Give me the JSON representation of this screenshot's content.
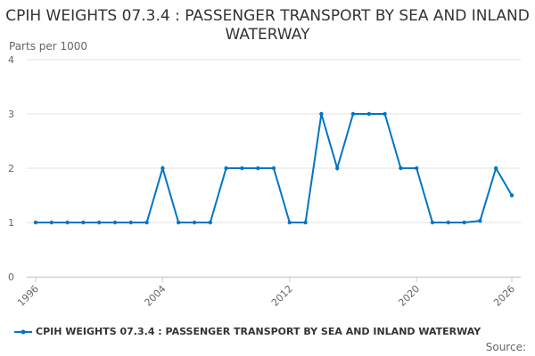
{
  "chart_data": {
    "type": "line",
    "title": "CPIH WEIGHTS 07.3.4 : PASSENGER TRANSPORT BY SEA AND INLAND WATERWAY",
    "ylabel": "Parts per 1000",
    "xlabel": "",
    "ylim": [
      0,
      4
    ],
    "xlim": [
      1996,
      2026
    ],
    "yticks": [
      0,
      1,
      2,
      3,
      4
    ],
    "xticks": [
      1996,
      2004,
      2012,
      2020,
      2026
    ],
    "grid": true,
    "legend_placement": "bottom",
    "color": "#0075c4",
    "series": [
      {
        "name": "CPIH WEIGHTS 07.3.4 : PASSENGER TRANSPORT BY SEA AND INLAND WATERWAY",
        "x": [
          1996,
          1997,
          1998,
          1999,
          2000,
          2001,
          2002,
          2003,
          2004,
          2005,
          2006,
          2007,
          2008,
          2009,
          2010,
          2011,
          2012,
          2013,
          2014,
          2015,
          2016,
          2017,
          2018,
          2019,
          2020,
          2021,
          2022,
          2023,
          2024,
          2025,
          2026
        ],
        "values": [
          1,
          1,
          1,
          1,
          1,
          1,
          1,
          1,
          2,
          1,
          1,
          1,
          2,
          2,
          2,
          2,
          1,
          1,
          3,
          2,
          3,
          3,
          3,
          2,
          2,
          1,
          1,
          1,
          1.03,
          2,
          1.5
        ]
      }
    ]
  },
  "source_label": "Source:"
}
